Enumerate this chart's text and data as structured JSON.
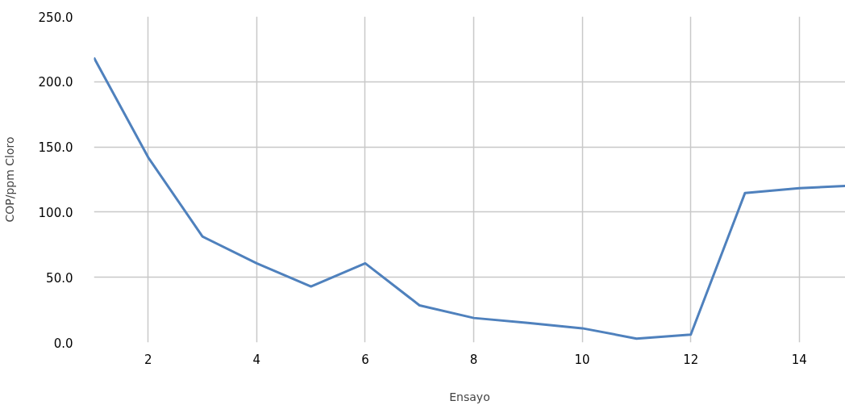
{
  "chart_data": {
    "type": "line",
    "xlabel": "Ensayo",
    "ylabel": "COP/ppm Cloro",
    "x": [
      1,
      2,
      3,
      4,
      5,
      6,
      7,
      8,
      9,
      10,
      11,
      12,
      13,
      14,
      14.85
    ],
    "series": [
      {
        "color": "#4f81bd",
        "values": [
          218.4,
          142,
          81.3,
          60.7,
          43,
          60.7,
          28.5,
          18.8,
          15,
          10.9,
          3,
          6,
          114.7,
          118.3,
          120.1
        ]
      }
    ],
    "xlim": [
      1,
      14.85
    ],
    "xticks": [
      2,
      4,
      6,
      8,
      10,
      12,
      14
    ],
    "ylim": [
      0,
      250
    ],
    "yticks": [
      {
        "value": 0,
        "label": "0.0"
      },
      {
        "value": 50,
        "label": "50.0"
      },
      {
        "value": 100,
        "label": "100.0"
      },
      {
        "value": 150,
        "label": "150.0"
      },
      {
        "value": 200,
        "label": "200.0"
      },
      {
        "value": 250,
        "label": "250.0"
      }
    ],
    "grid": true,
    "marker": "none",
    "line_style": "solid"
  }
}
